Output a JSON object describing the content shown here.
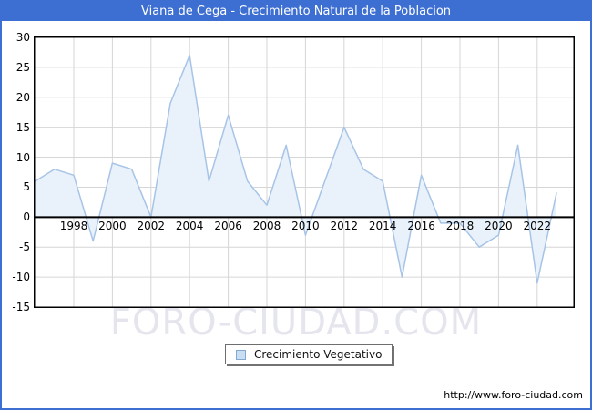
{
  "window": {
    "title": "Viana de Cega - Crecimiento Natural de la Poblacion"
  },
  "chart_data": {
    "type": "area",
    "title": "Viana de Cega - Crecimiento Natural de la Poblacion",
    "x": [
      1996,
      1997,
      1998,
      1999,
      2000,
      2001,
      2002,
      2003,
      2004,
      2005,
      2006,
      2007,
      2008,
      2009,
      2010,
      2011,
      2012,
      2013,
      2014,
      2015,
      2016,
      2017,
      2018,
      2019,
      2020,
      2021,
      2022,
      2023
    ],
    "series": [
      {
        "name": "Crecimiento Vegetativo",
        "values": [
          6,
          8,
          7,
          -4,
          9,
          8,
          0,
          19,
          27,
          6,
          17,
          6,
          2,
          12,
          -3,
          6,
          15,
          8,
          6,
          -10,
          7,
          -1,
          -1,
          -5,
          -3,
          12,
          -11,
          4
        ]
      }
    ],
    "ylim": [
      -15,
      30
    ],
    "ytick_step": 5,
    "ytick_labels": [
      "30",
      "25",
      "20",
      "15",
      "10",
      "5",
      "0",
      "-5",
      "-10",
      "-15"
    ],
    "xtick_labels": [
      "1998",
      "2000",
      "2002",
      "2004",
      "2006",
      "2008",
      "2010",
      "2012",
      "2014",
      "2016",
      "2018",
      "2020",
      "2022"
    ],
    "grid": true,
    "legend_position": "bottom-left-of-center",
    "baseline": 0
  },
  "legend": {
    "label": "Crecimiento Vegetativo"
  },
  "watermark": {
    "text": "FORO-CIUDAD.COM"
  },
  "footer": {
    "link": "http://www.foro-ciudad.com"
  },
  "colors": {
    "frame_blue": "#3d6fd2",
    "title_text": "#ffffff",
    "line": "#a7c4e6",
    "fill": "#e9f1fb",
    "grid": "#d6d6d6",
    "zero_line": "#000000",
    "plot_border": "#000000",
    "watermark": "#e5e5ee"
  }
}
